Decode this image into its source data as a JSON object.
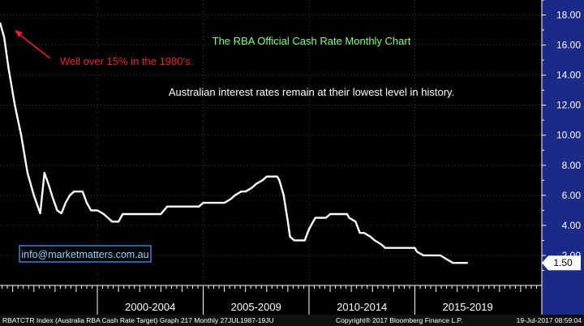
{
  "chart_data": {
    "type": "line",
    "title": "The RBA Official Cash Rate Monthly Chart",
    "subtitle": "Australian interest rates remain at their lowest level in history.",
    "annotation": "Well over 15% in the 1980's.",
    "contact": "info@marketmatters.com.au",
    "last_value_label": "1.50",
    "ylim": [
      0,
      19
    ],
    "xlim": [
      1995.4,
      2021.0
    ],
    "y_ticks": [
      {
        "value": 2,
        "label": "2.00"
      },
      {
        "value": 4,
        "label": "4.00"
      },
      {
        "value": 6,
        "label": "6.00"
      },
      {
        "value": 8,
        "label": "8.00"
      },
      {
        "value": 10,
        "label": "10.00"
      },
      {
        "value": 12,
        "label": "12.00"
      },
      {
        "value": 14,
        "label": "14.00"
      },
      {
        "value": 16,
        "label": "16.00"
      },
      {
        "value": 18,
        "label": "18.00"
      }
    ],
    "x_groups": [
      {
        "label": "2000-2004",
        "from": 2000,
        "to": 2005
      },
      {
        "label": "2005-2009",
        "from": 2005,
        "to": 2010
      },
      {
        "label": "2010-2014",
        "from": 2010,
        "to": 2015
      },
      {
        "label": "2015-2019",
        "from": 2015,
        "to": 2020
      }
    ],
    "series": [
      {
        "color": "#ffffff",
        "x": [
          1995.4,
          1995.6,
          1995.8,
          1996.1,
          1996.4,
          1996.7,
          1997.0,
          1997.3,
          1997.5,
          1997.7,
          1997.9,
          1998.1,
          1998.3,
          1998.5,
          1998.7,
          1998.9,
          1999.1,
          1999.3,
          1999.5,
          1999.7,
          1999.9,
          2000.0,
          2000.3,
          2000.5,
          2000.7,
          2001.0,
          2001.2,
          2001.5,
          2001.7,
          2002.0,
          2002.3,
          2002.5,
          2002.8,
          2003.0,
          2003.3,
          2003.5,
          2003.8,
          2004.0,
          2004.3,
          2004.5,
          2004.8,
          2005.0,
          2005.3,
          2005.5,
          2005.8,
          2006.0,
          2006.3,
          2006.5,
          2006.8,
          2007.0,
          2007.3,
          2007.5,
          2007.8,
          2008.0,
          2008.2,
          2008.5,
          2008.6,
          2008.8,
          2009.0,
          2009.1,
          2009.3,
          2009.5,
          2009.8,
          2010.0,
          2010.3,
          2010.5,
          2010.8,
          2011.0,
          2011.3,
          2011.5,
          2011.8,
          2011.9,
          2012.2,
          2012.4,
          2012.6,
          2012.9,
          2013.1,
          2013.4,
          2013.6,
          2013.9,
          2014.2,
          2014.6,
          2015.0,
          2015.1,
          2015.4,
          2015.8,
          2016.2,
          2016.5,
          2016.8,
          2017.0,
          2017.2,
          2017.5
        ],
        "y": [
          17.5,
          16.5,
          14.5,
          12.0,
          10.0,
          7.5,
          6.0,
          4.8,
          7.5,
          6.7,
          5.8,
          5.0,
          4.8,
          5.5,
          6.0,
          6.25,
          6.25,
          6.25,
          5.5,
          5.0,
          5.0,
          5.0,
          4.75,
          4.5,
          4.25,
          4.25,
          4.75,
          4.75,
          4.75,
          4.75,
          4.75,
          4.75,
          4.75,
          4.75,
          5.25,
          5.25,
          5.25,
          5.25,
          5.25,
          5.25,
          5.25,
          5.5,
          5.5,
          5.5,
          5.5,
          5.5,
          5.75,
          6.0,
          6.25,
          6.25,
          6.5,
          6.75,
          7.0,
          7.25,
          7.25,
          7.25,
          7.0,
          6.0,
          4.25,
          3.25,
          3.0,
          3.0,
          3.0,
          3.75,
          4.5,
          4.5,
          4.5,
          4.75,
          4.75,
          4.75,
          4.75,
          4.5,
          4.25,
          3.5,
          3.5,
          3.25,
          3.0,
          2.75,
          2.5,
          2.5,
          2.5,
          2.5,
          2.5,
          2.25,
          2.0,
          2.0,
          2.0,
          1.75,
          1.5,
          1.5,
          1.5,
          1.5
        ]
      }
    ]
  },
  "footer": {
    "left": "RBATCTR Index (Australia RBA Cash Rate Target) Graph 217  Monthly 27JUL1987-19JU",
    "center": "Copyright® 2017 Bloomberg Finance L.P.",
    "right": "19-Jul-2017 08:59:04"
  },
  "colors": {
    "background": "#000000",
    "line": "#ffffff",
    "title": "#7fff7f",
    "annotation": "#e8202a",
    "contact_border": "#3d7fd9",
    "contact_text": "#8fd3ff",
    "right_panel": "#1a2a86"
  }
}
